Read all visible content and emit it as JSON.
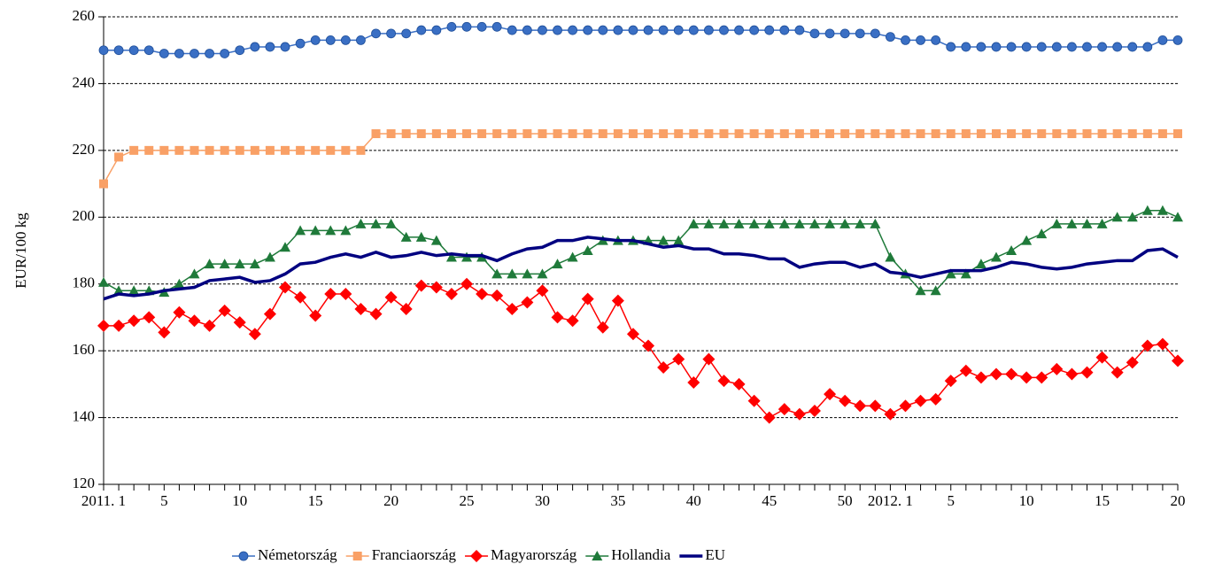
{
  "chart_data": {
    "type": "line",
    "y_label": "EUR/100 kg",
    "categories": [
      "2011. 1",
      null,
      null,
      null,
      "5",
      null,
      null,
      null,
      null,
      "10",
      null,
      null,
      null,
      null,
      "15",
      null,
      null,
      null,
      null,
      "20",
      null,
      null,
      null,
      null,
      "25",
      null,
      null,
      null,
      null,
      "30",
      null,
      null,
      null,
      null,
      "35",
      null,
      null,
      null,
      null,
      "40",
      null,
      null,
      null,
      null,
      "45",
      null,
      null,
      null,
      null,
      "50",
      null,
      null,
      "2012. 1",
      null,
      null,
      null,
      "5",
      null,
      null,
      null,
      null,
      "10",
      null,
      null,
      null,
      null,
      "15",
      null,
      null,
      null,
      null,
      "20"
    ],
    "ylim": [
      120,
      260
    ],
    "yticks": [
      120,
      140,
      160,
      180,
      200,
      220,
      240,
      260
    ],
    "grid": true,
    "legend": "bottom",
    "series": [
      {
        "name": "Németország",
        "color": "#3a6fc4",
        "marker": "circle",
        "values": [
          250,
          250,
          250,
          250,
          249,
          249,
          249,
          249,
          249,
          250,
          251,
          251,
          251,
          252,
          253,
          253,
          253,
          253,
          255,
          255,
          255,
          256,
          256,
          257,
          257,
          257,
          257,
          256,
          256,
          256,
          256,
          256,
          256,
          256,
          256,
          256,
          256,
          256,
          256,
          256,
          256,
          256,
          256,
          256,
          256,
          256,
          256,
          255,
          255,
          255,
          255,
          255,
          254,
          253,
          253,
          253,
          251,
          251,
          251,
          251,
          251,
          251,
          251,
          251,
          251,
          251,
          251,
          251,
          251,
          251,
          253,
          253
        ]
      },
      {
        "name": "Franciaország",
        "color": "#f9a066",
        "marker": "square",
        "values": [
          210,
          218,
          220,
          220,
          220,
          220,
          220,
          220,
          220,
          220,
          220,
          220,
          220,
          220,
          220,
          220,
          220,
          220,
          225,
          225,
          225,
          225,
          225,
          225,
          225,
          225,
          225,
          225,
          225,
          225,
          225,
          225,
          225,
          225,
          225,
          225,
          225,
          225,
          225,
          225,
          225,
          225,
          225,
          225,
          225,
          225,
          225,
          225,
          225,
          225,
          225,
          225,
          225,
          225,
          225,
          225,
          225,
          225,
          225,
          225,
          225,
          225,
          225,
          225,
          225,
          225,
          225,
          225,
          225,
          225,
          225,
          225
        ]
      },
      {
        "name": "Magyarország",
        "color": "#ff0000",
        "marker": "diamond",
        "values": [
          167.5,
          167.5,
          169,
          170,
          165.5,
          171.5,
          169,
          167.5,
          172,
          168.5,
          165,
          171,
          179,
          176,
          170.5,
          177,
          177,
          172.5,
          171,
          176,
          172.5,
          179.5,
          179,
          177,
          180,
          177,
          176.5,
          172.5,
          174.5,
          178,
          170,
          169,
          175.5,
          167,
          175,
          165,
          161.5,
          155,
          157.5,
          150.5,
          157.5,
          151,
          150,
          145,
          140,
          142.5,
          141,
          142,
          147,
          145,
          143.5,
          143.5,
          141,
          143.5,
          145,
          145.5,
          151,
          154,
          152,
          153,
          153,
          152,
          152,
          154.5,
          153,
          153.5,
          158,
          153.5,
          156.5,
          161.5,
          162,
          157
        ]
      },
      {
        "name": "Hollandia",
        "color": "#1f7a3a",
        "marker": "triangle",
        "values": [
          180.5,
          178,
          178,
          178,
          177.5,
          180,
          183,
          186,
          186,
          186,
          186,
          188,
          191,
          196,
          196,
          196,
          196,
          198,
          198,
          198,
          194,
          194,
          193,
          188,
          188,
          188,
          183,
          183,
          183,
          183,
          186,
          188,
          190,
          193,
          193,
          193,
          193,
          193,
          193,
          198,
          198,
          198,
          198,
          198,
          198,
          198,
          198,
          198,
          198,
          198,
          198,
          198,
          188,
          183,
          178,
          178,
          183,
          183,
          186,
          188,
          190,
          193,
          195,
          198,
          198,
          198,
          198,
          200,
          200,
          202,
          202,
          200
        ]
      },
      {
        "name": "EU",
        "color": "#000080",
        "marker": null,
        "values": [
          175.5,
          177,
          176.5,
          177,
          178,
          178.5,
          179,
          181,
          181.5,
          182,
          180.5,
          181,
          183,
          186,
          186.5,
          188,
          189,
          188,
          189.5,
          188,
          188.5,
          189.5,
          188.5,
          189,
          188.5,
          188.5,
          187,
          189,
          190.5,
          191,
          193,
          193,
          194,
          193.5,
          193,
          193,
          192,
          191,
          191.5,
          190.5,
          190.5,
          189,
          189,
          188.5,
          187.5,
          187.5,
          185,
          186,
          186.5,
          186.5,
          185,
          186,
          183.5,
          183,
          182,
          183,
          184,
          184,
          184,
          185,
          186.5,
          186,
          185,
          184.5,
          185,
          186,
          186.5,
          187,
          187,
          190,
          190.5,
          188
        ]
      }
    ]
  }
}
